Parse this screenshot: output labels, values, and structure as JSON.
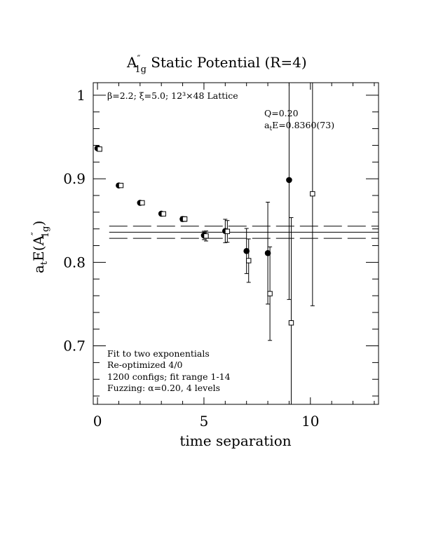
{
  "chart_data": {
    "type": "scatter",
    "title": {
      "prefix": "A",
      "prime_sup": "″",
      "sub": "1g",
      "rest": " Static Potential (R=4)"
    },
    "xlabel": "time separation",
    "ylabel": {
      "a": "a",
      "t": "t",
      "E": "E(A",
      "prime_sup": "″",
      "sub": "1g",
      "close": ")"
    },
    "xlim": [
      -0.2,
      13.2
    ],
    "ylim": [
      0.63,
      1.015
    ],
    "x_ticks": [
      0,
      5,
      10
    ],
    "x_tick_labels": [
      "0",
      "5",
      "10"
    ],
    "y_ticks": [
      0.7,
      0.8,
      0.9,
      1.0
    ],
    "y_tick_labels": [
      "0.7",
      "0.8",
      "0.9",
      "1"
    ],
    "lattice_info": "β=2.2; ξ=5.0; 12³×48 Lattice",
    "fit_result": {
      "q_line": "Q=0.20",
      "e_prefix": "a",
      "e_sub": "t",
      "e_rest": "E=0.8360(73)"
    },
    "notes": [
      "Fit to two exponentials",
      "Re-optimized 4/0",
      "1200 configs; fit range 1-14",
      "Fuzzing: α=0.20, 4 levels"
    ],
    "fit_band": {
      "center": 0.836,
      "upper": 0.8433,
      "lower": 0.8287
    },
    "series": [
      {
        "marker": "filled-circle",
        "points": [
          {
            "x": 0,
            "y": 0.9365,
            "err": 0.001
          },
          {
            "x": 1,
            "y": 0.892,
            "err": 0.0012
          },
          {
            "x": 2,
            "y": 0.8712,
            "err": 0.0015
          },
          {
            "x": 3,
            "y": 0.8582,
            "err": 0.002
          },
          {
            "x": 4,
            "y": 0.8518,
            "err": 0.0028
          },
          {
            "x": 5,
            "y": 0.8322,
            "err": 0.005
          },
          {
            "x": 6,
            "y": 0.8375,
            "err": 0.014
          },
          {
            "x": 7,
            "y": 0.8135,
            "err": 0.027
          },
          {
            "x": 8,
            "y": 0.811,
            "err": 0.061
          },
          {
            "x": 9,
            "y": 0.8985,
            "err": 0.143
          }
        ]
      },
      {
        "marker": "open-square",
        "points": [
          {
            "x": 0,
            "y": 0.9355,
            "err": 0.001
          },
          {
            "x": 1,
            "y": 0.892,
            "err": 0.0012
          },
          {
            "x": 2,
            "y": 0.8712,
            "err": 0.0015
          },
          {
            "x": 3,
            "y": 0.858,
            "err": 0.002
          },
          {
            "x": 4,
            "y": 0.8518,
            "err": 0.0028
          },
          {
            "x": 5,
            "y": 0.8315,
            "err": 0.006
          },
          {
            "x": 6,
            "y": 0.837,
            "err": 0.013
          },
          {
            "x": 7,
            "y": 0.802,
            "err": 0.026
          },
          {
            "x": 8,
            "y": 0.7625,
            "err": 0.056
          },
          {
            "x": 9,
            "y": 0.7275,
            "err": 0.126
          },
          {
            "x": 10,
            "y": 0.882,
            "err": 0.134
          }
        ]
      }
    ]
  }
}
